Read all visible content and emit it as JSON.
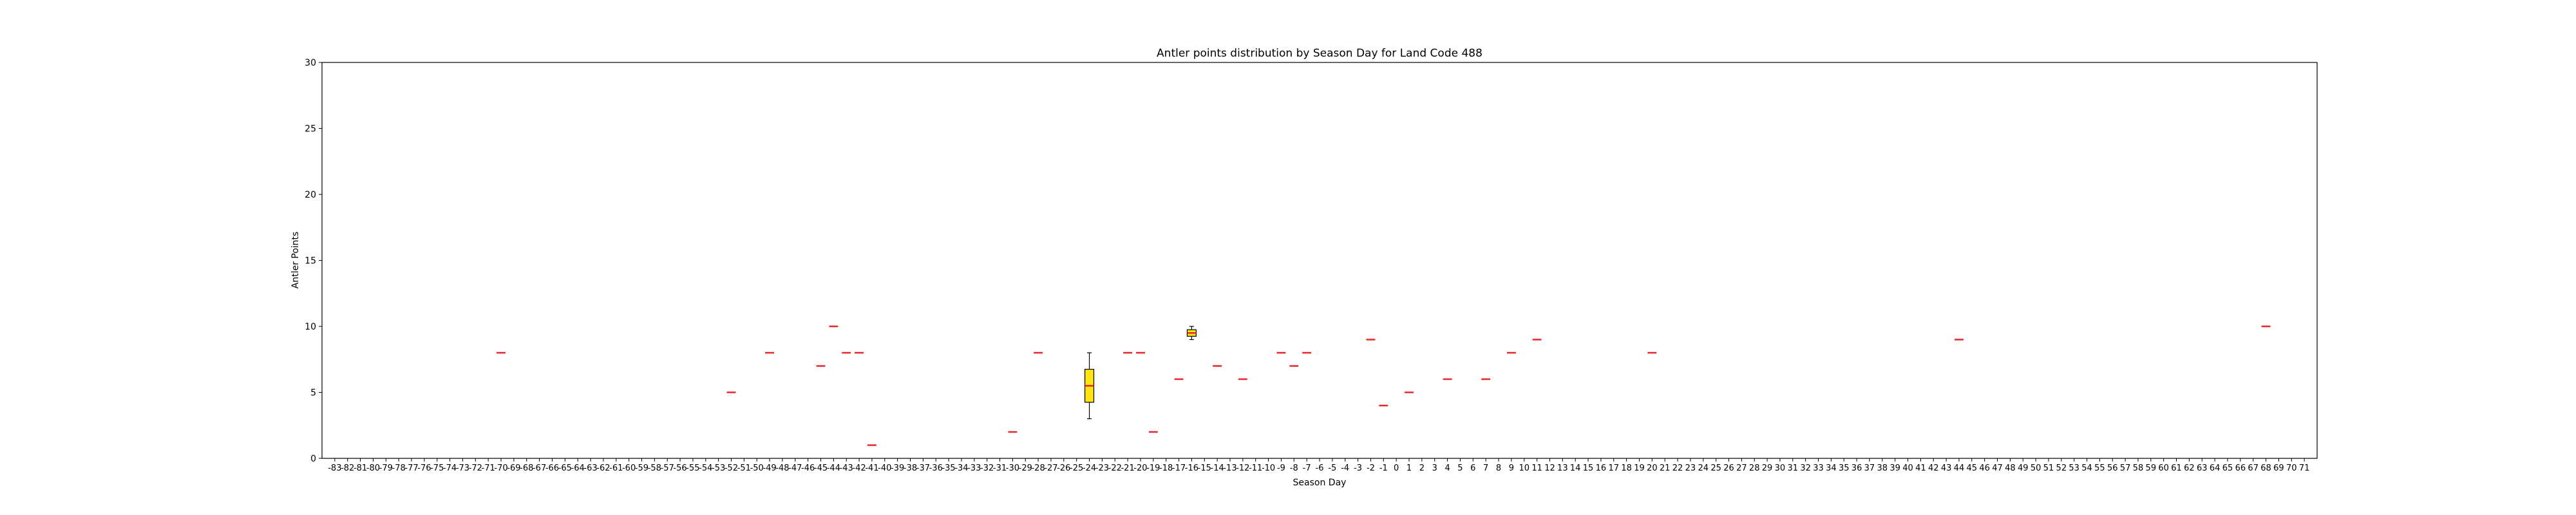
{
  "chart_data": {
    "type": "box",
    "title": "Antler points distribution by Season Day for Land Code 488",
    "xlabel": "Season Day",
    "ylabel": "Antler Points",
    "ylim": [
      0,
      30
    ],
    "yticks": [
      0,
      5,
      10,
      15,
      20,
      25,
      30
    ],
    "x_categories_range": [
      -83,
      71
    ],
    "box_fill_color": "#ffe50f",
    "median_color": "#e8262c",
    "grid": false,
    "legend": "none",
    "boxes": [
      {
        "x": -70,
        "min": 8,
        "q1": 8,
        "median": 8,
        "q3": 8,
        "max": 8
      },
      {
        "x": -52,
        "min": 5,
        "q1": 5,
        "median": 5,
        "q3": 5,
        "max": 5
      },
      {
        "x": -49,
        "min": 8,
        "q1": 8,
        "median": 8,
        "q3": 8,
        "max": 8
      },
      {
        "x": -45,
        "min": 7,
        "q1": 7,
        "median": 7,
        "q3": 7,
        "max": 7
      },
      {
        "x": -44,
        "min": 10,
        "q1": 10,
        "median": 10,
        "q3": 10,
        "max": 10
      },
      {
        "x": -43,
        "min": 8,
        "q1": 8,
        "median": 8,
        "q3": 8,
        "max": 8
      },
      {
        "x": -42,
        "min": 8,
        "q1": 8,
        "median": 8,
        "q3": 8,
        "max": 8
      },
      {
        "x": -41,
        "min": 1,
        "q1": 1,
        "median": 1,
        "q3": 1,
        "max": 1
      },
      {
        "x": -30,
        "min": 2,
        "q1": 2,
        "median": 2,
        "q3": 2,
        "max": 2
      },
      {
        "x": -28,
        "min": 8,
        "q1": 8,
        "median": 8,
        "q3": 8,
        "max": 8
      },
      {
        "x": -24,
        "min": 3,
        "q1": 4.25,
        "median": 5.5,
        "q3": 6.75,
        "max": 8
      },
      {
        "x": -21,
        "min": 8,
        "q1": 8,
        "median": 8,
        "q3": 8,
        "max": 8
      },
      {
        "x": -20,
        "min": 8,
        "q1": 8,
        "median": 8,
        "q3": 8,
        "max": 8
      },
      {
        "x": -19,
        "min": 2,
        "q1": 2,
        "median": 2,
        "q3": 2,
        "max": 2
      },
      {
        "x": -17,
        "min": 6,
        "q1": 6,
        "median": 6,
        "q3": 6,
        "max": 6
      },
      {
        "x": -16,
        "min": 9,
        "q1": 9.25,
        "median": 9.5,
        "q3": 9.75,
        "max": 10
      },
      {
        "x": -14,
        "min": 7,
        "q1": 7,
        "median": 7,
        "q3": 7,
        "max": 7
      },
      {
        "x": -12,
        "min": 6,
        "q1": 6,
        "median": 6,
        "q3": 6,
        "max": 6
      },
      {
        "x": -9,
        "min": 8,
        "q1": 8,
        "median": 8,
        "q3": 8,
        "max": 8
      },
      {
        "x": -8,
        "min": 7,
        "q1": 7,
        "median": 7,
        "q3": 7,
        "max": 7
      },
      {
        "x": -7,
        "min": 8,
        "q1": 8,
        "median": 8,
        "q3": 8,
        "max": 8
      },
      {
        "x": -2,
        "min": 9,
        "q1": 9,
        "median": 9,
        "q3": 9,
        "max": 9
      },
      {
        "x": -1,
        "min": 4,
        "q1": 4,
        "median": 4,
        "q3": 4,
        "max": 4
      },
      {
        "x": 1,
        "min": 5,
        "q1": 5,
        "median": 5,
        "q3": 5,
        "max": 5
      },
      {
        "x": 4,
        "min": 6,
        "q1": 6,
        "median": 6,
        "q3": 6,
        "max": 6
      },
      {
        "x": 7,
        "min": 6,
        "q1": 6,
        "median": 6,
        "q3": 6,
        "max": 6
      },
      {
        "x": 9,
        "min": 8,
        "q1": 8,
        "median": 8,
        "q3": 8,
        "max": 8
      },
      {
        "x": 11,
        "min": 9,
        "q1": 9,
        "median": 9,
        "q3": 9,
        "max": 9
      },
      {
        "x": 20,
        "min": 8,
        "q1": 8,
        "median": 8,
        "q3": 8,
        "max": 8
      },
      {
        "x": 44,
        "min": 9,
        "q1": 9,
        "median": 9,
        "q3": 9,
        "max": 9
      },
      {
        "x": 68,
        "min": 10,
        "q1": 10,
        "median": 10,
        "q3": 10,
        "max": 10
      }
    ]
  }
}
